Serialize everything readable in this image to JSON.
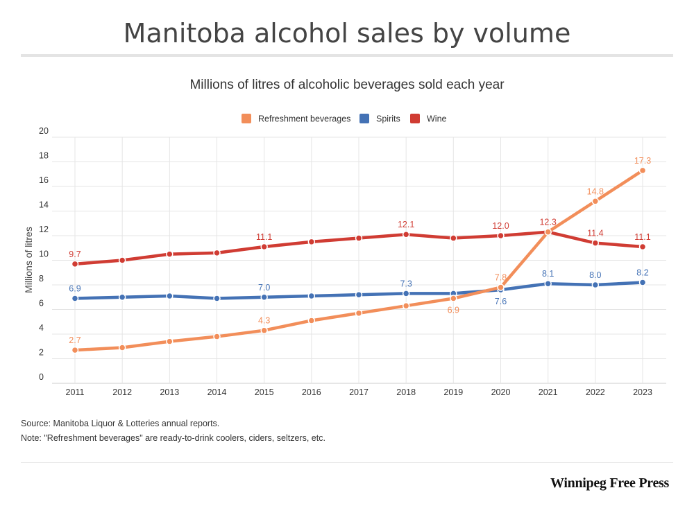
{
  "header": {
    "title": "Manitoba alcohol sales by volume"
  },
  "footer": {
    "source": "Source: Manitoba Liquor & Lotteries annual reports.",
    "note": "Note: \"Refreshment beverages\" are ready-to-drink coolers, ciders, seltzers, etc.",
    "logo": "Winnipeg Free Press"
  },
  "chart_data": {
    "type": "line",
    "title": "Millions of litres of alcoholic beverages sold each year",
    "xlabel": "",
    "ylabel": "Millions of litres",
    "ylim": [
      0,
      20
    ],
    "yticks": [
      0,
      2,
      4,
      6,
      8,
      10,
      12,
      14,
      16,
      18,
      20
    ],
    "grid": true,
    "legend_position": "top-center",
    "x": [
      "2011",
      "2012",
      "2013",
      "2014",
      "2015",
      "2016",
      "2017",
      "2018",
      "2019",
      "2020",
      "2021",
      "2022",
      "2023"
    ],
    "series": [
      {
        "name": "Refreshment beverages",
        "color": "#f28e5a",
        "values": [
          2.7,
          2.9,
          3.4,
          3.8,
          4.3,
          5.1,
          5.7,
          6.3,
          6.9,
          7.8,
          12.3,
          14.8,
          17.3
        ],
        "labeled": [
          0,
          4,
          8,
          9,
          11,
          12
        ],
        "label_below": [
          8
        ]
      },
      {
        "name": "Spirits",
        "color": "#4472b5",
        "values": [
          6.9,
          7.0,
          7.1,
          6.9,
          7.0,
          7.1,
          7.2,
          7.3,
          7.3,
          7.6,
          8.1,
          8.0,
          8.2
        ],
        "labeled": [
          0,
          4,
          7,
          9,
          10,
          11,
          12
        ],
        "label_below": [
          9
        ]
      },
      {
        "name": "Wine",
        "color": "#d03c33",
        "values": [
          9.7,
          10.0,
          10.5,
          10.6,
          11.1,
          11.5,
          11.8,
          12.1,
          11.8,
          12.0,
          12.3,
          11.4,
          11.1
        ],
        "labeled": [
          0,
          4,
          7,
          9,
          10,
          11,
          12
        ],
        "label_below": []
      }
    ]
  }
}
